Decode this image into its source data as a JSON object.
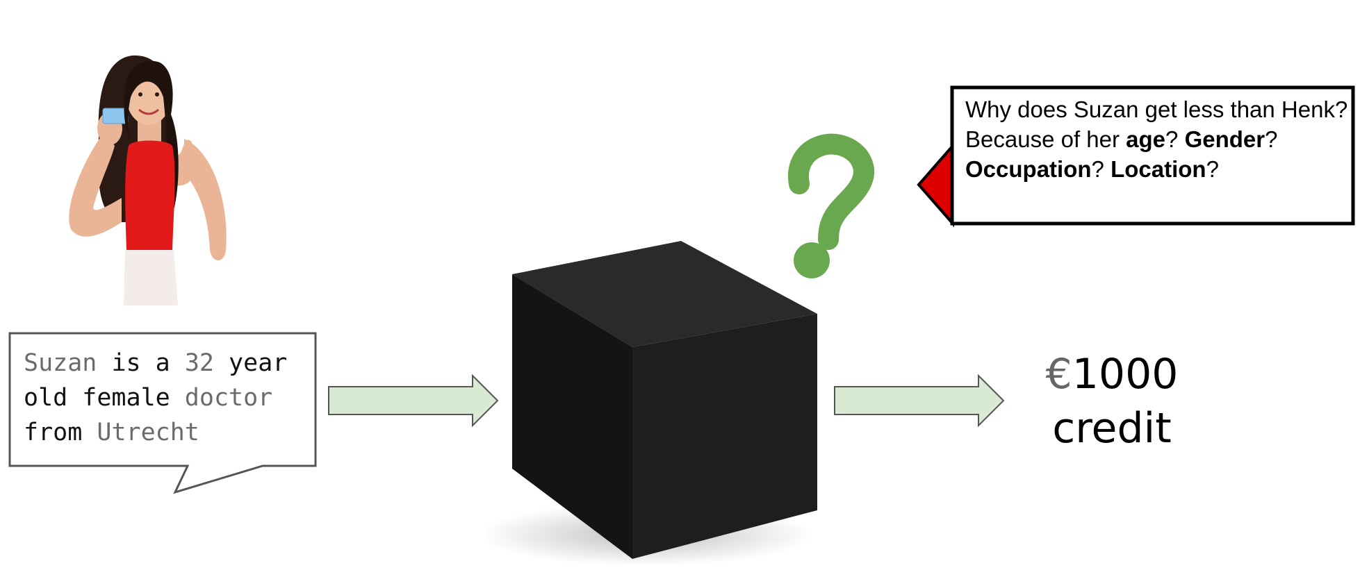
{
  "input": {
    "name": "Suzan",
    "is_a": "is a",
    "age": "32",
    "year": "year",
    "old_female": "old female",
    "occupation": "doctor",
    "from": "from",
    "location": "Utrecht"
  },
  "question": {
    "q1": "Why does Suzan get less than Henk? Because of her",
    "age": "age",
    "mark1": "?",
    "gender": "Gender",
    "mark2": "?",
    "occupation": "Occupation",
    "mark3": "?",
    "location": "Location",
    "mark4": "?"
  },
  "output": {
    "currency": "€",
    "amount": "1000",
    "label": "credit"
  },
  "colors": {
    "arrow_fill": "#d9ead3",
    "arrow_stroke": "#555555",
    "question_mark": "#6aa84f",
    "callout_pointer": "#dd0000",
    "cube_top": "#2b2a28",
    "cube_front": "#141414",
    "cube_side": "#1e1e1d"
  },
  "icons": {
    "person": "woman-holding-card-illustration",
    "box": "black-box-cube",
    "question": "question-mark-icon"
  }
}
